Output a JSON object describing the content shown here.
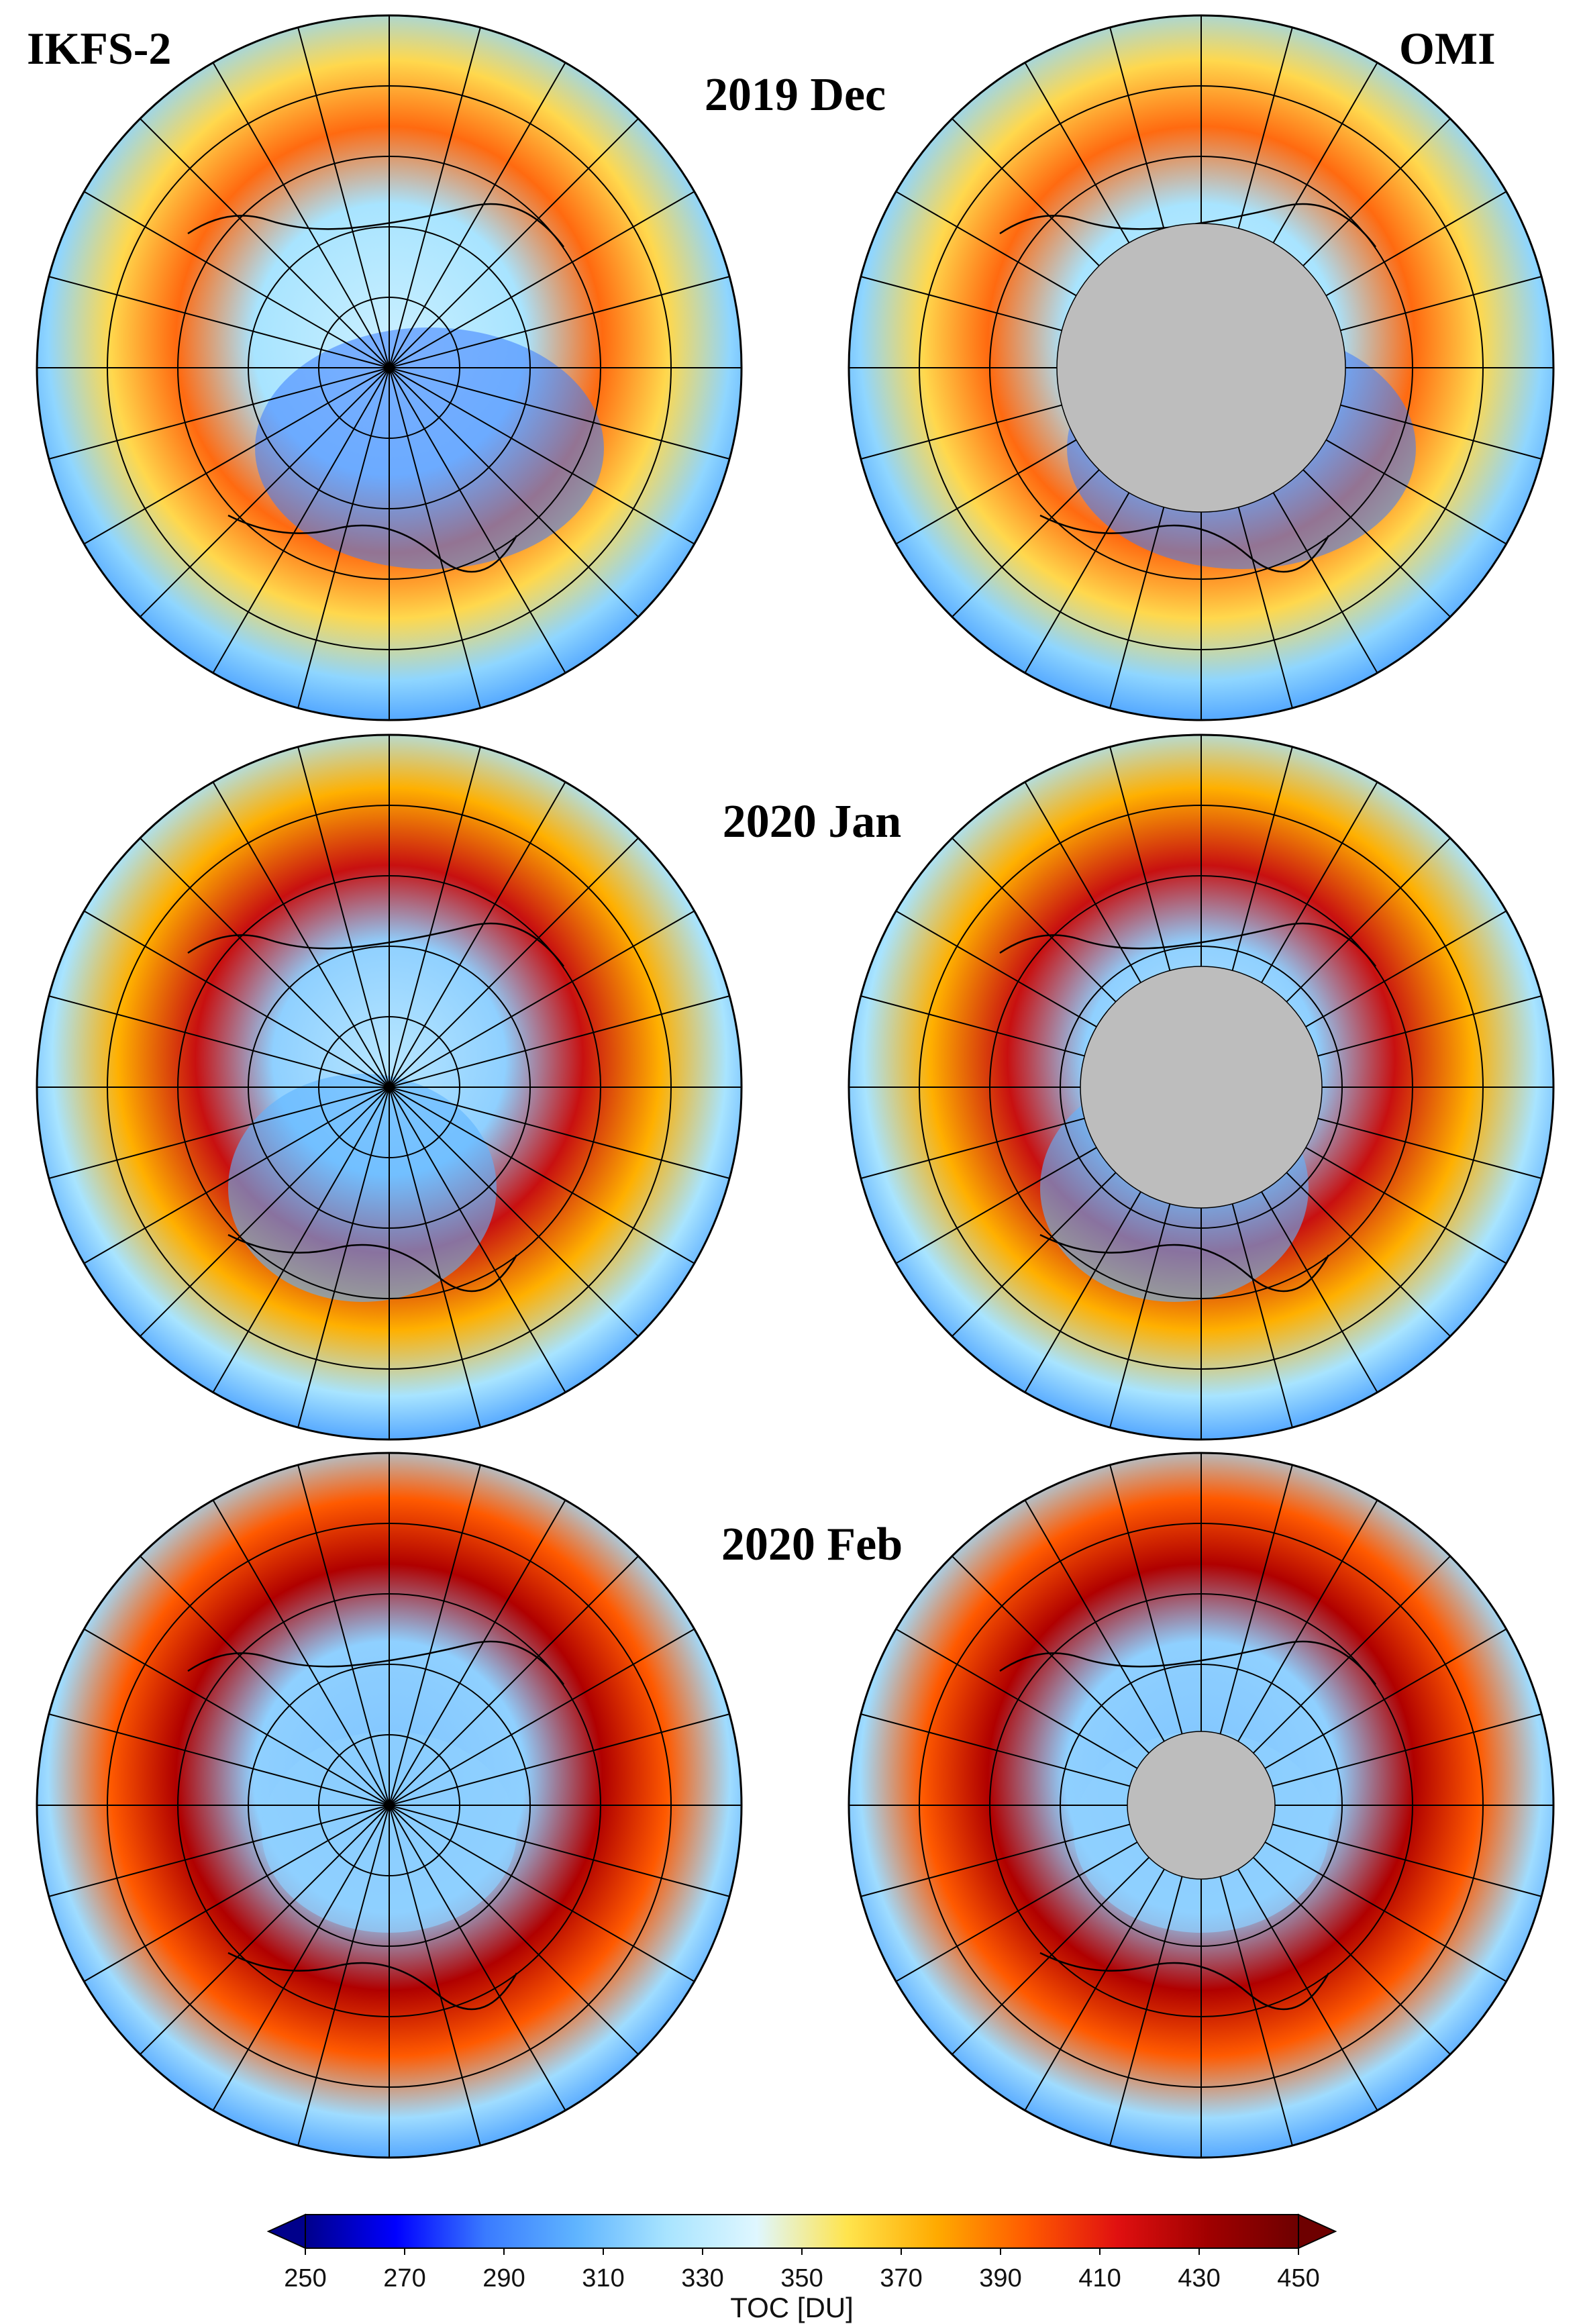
{
  "figure": {
    "left_label": "IKFS-2",
    "right_label": "OMI",
    "months": [
      "2019 Dec",
      "2020 Jan",
      "2020 Feb"
    ]
  },
  "panels": [
    {
      "instrument": "IKFS-2",
      "month": "2019 Dec",
      "no_data_polar_cap": false
    },
    {
      "instrument": "OMI",
      "month": "2019 Dec",
      "no_data_polar_cap": true
    },
    {
      "instrument": "IKFS-2",
      "month": "2020 Jan",
      "no_data_polar_cap": false
    },
    {
      "instrument": "OMI",
      "month": "2020 Jan",
      "no_data_polar_cap": true
    },
    {
      "instrument": "IKFS-2",
      "month": "2020 Feb",
      "no_data_polar_cap": false
    },
    {
      "instrument": "OMI",
      "month": "2020 Feb",
      "no_data_polar_cap": true
    }
  ],
  "colorbar": {
    "title": "TOC [DU]",
    "min": 250,
    "max": 450,
    "ticks": [
      "250",
      "270",
      "290",
      "310",
      "330",
      "350",
      "370",
      "390",
      "410",
      "430",
      "450"
    ],
    "extend": "both",
    "colors": [
      "#00008b",
      "#0000ff",
      "#3a7bff",
      "#5fb4ff",
      "#a8e4ff",
      "#dff7ff",
      "#ffe44d",
      "#ffaa00",
      "#ff5a00",
      "#e01010",
      "#a00000",
      "#6e0000"
    ]
  },
  "map_colors": {
    "grid_line": "#000000",
    "coastline": "#000000",
    "no_data": "#bdbdbd"
  }
}
